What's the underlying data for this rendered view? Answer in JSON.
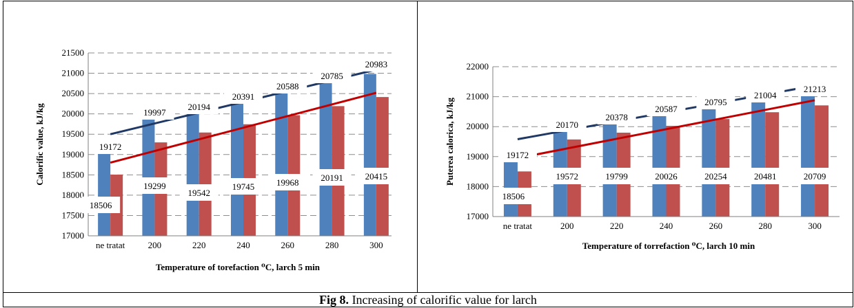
{
  "caption": {
    "label": "Fig 8.",
    "text": " Increasing of calorific value for larch"
  },
  "colors": {
    "series1": "#4F81BD",
    "series2": "#C0504D",
    "trend1": "#1F3864",
    "trend2": "#C00000"
  },
  "chart_data": [
    {
      "type": "bar",
      "categories": [
        "ne tratat",
        "200",
        "220",
        "240",
        "260",
        "280",
        "300"
      ],
      "series": [
        {
          "values": [
            19172,
            19997,
            20194,
            20391,
            20588,
            20785,
            20983
          ]
        },
        {
          "values": [
            18506,
            19299,
            19542,
            19745,
            19968,
            20191,
            20415
          ]
        }
      ],
      "trendlines": [
        {
          "series": 0,
          "start": 19500,
          "end": 21090
        },
        {
          "series": 1,
          "start": 18800,
          "end": 20520
        }
      ],
      "xlabel": "Temperature of torefaction ⁰C, larch 5 min",
      "ylabel": "Calorific value, kJ/kg",
      "ylim": [
        17000,
        21500
      ],
      "yticks": [
        17000,
        17500,
        18000,
        18500,
        19000,
        19500,
        20000,
        20500,
        21000,
        21500
      ],
      "grid": true
    },
    {
      "type": "bar",
      "categories": [
        "ne tratat",
        "200",
        "220",
        "240",
        "260",
        "280",
        "300"
      ],
      "series": [
        {
          "values": [
            19172,
            20170,
            20378,
            20587,
            20795,
            21004,
            21213
          ]
        },
        {
          "values": [
            18506,
            19572,
            19799,
            20026,
            20254,
            20481,
            20709
          ]
        }
      ],
      "trendlines": [
        {
          "series": 0,
          "start": 19580,
          "end": 21370
        },
        {
          "series": 1,
          "start": 18950,
          "end": 20880
        }
      ],
      "xlabel": "Temperature of torrefaction ⁰C, larch 10 min",
      "ylabel": "Puterea calorica, kJ/kg",
      "ylim": [
        17000,
        22000
      ],
      "yticks": [
        17000,
        18000,
        19000,
        20000,
        21000,
        22000
      ],
      "grid": true
    }
  ]
}
